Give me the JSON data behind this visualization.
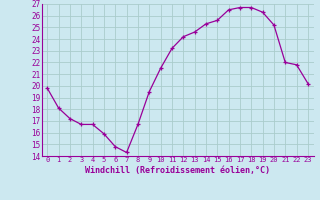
{
  "x": [
    0,
    1,
    2,
    3,
    4,
    5,
    6,
    7,
    8,
    9,
    10,
    11,
    12,
    13,
    14,
    15,
    16,
    17,
    18,
    19,
    20,
    21,
    22,
    23
  ],
  "y": [
    19.8,
    18.1,
    17.2,
    16.7,
    16.7,
    15.9,
    14.8,
    14.3,
    16.7,
    19.5,
    21.5,
    23.2,
    24.2,
    24.6,
    25.3,
    25.6,
    26.5,
    26.7,
    26.7,
    26.3,
    25.2,
    22.0,
    21.8,
    20.2
  ],
  "line_color": "#990099",
  "bg_color": "#cce8f0",
  "grid_color": "#aacccc",
  "xlabel": "Windchill (Refroidissement éolien,°C)",
  "xlabel_color": "#990099",
  "tick_label_color": "#990099",
  "ylim": [
    14,
    27
  ],
  "yticks": [
    14,
    15,
    16,
    17,
    18,
    19,
    20,
    21,
    22,
    23,
    24,
    25,
    26,
    27
  ],
  "xticks": [
    0,
    1,
    2,
    3,
    4,
    5,
    6,
    7,
    8,
    9,
    10,
    11,
    12,
    13,
    14,
    15,
    16,
    17,
    18,
    19,
    20,
    21,
    22,
    23
  ],
  "xlim": [
    -0.5,
    23.5
  ]
}
